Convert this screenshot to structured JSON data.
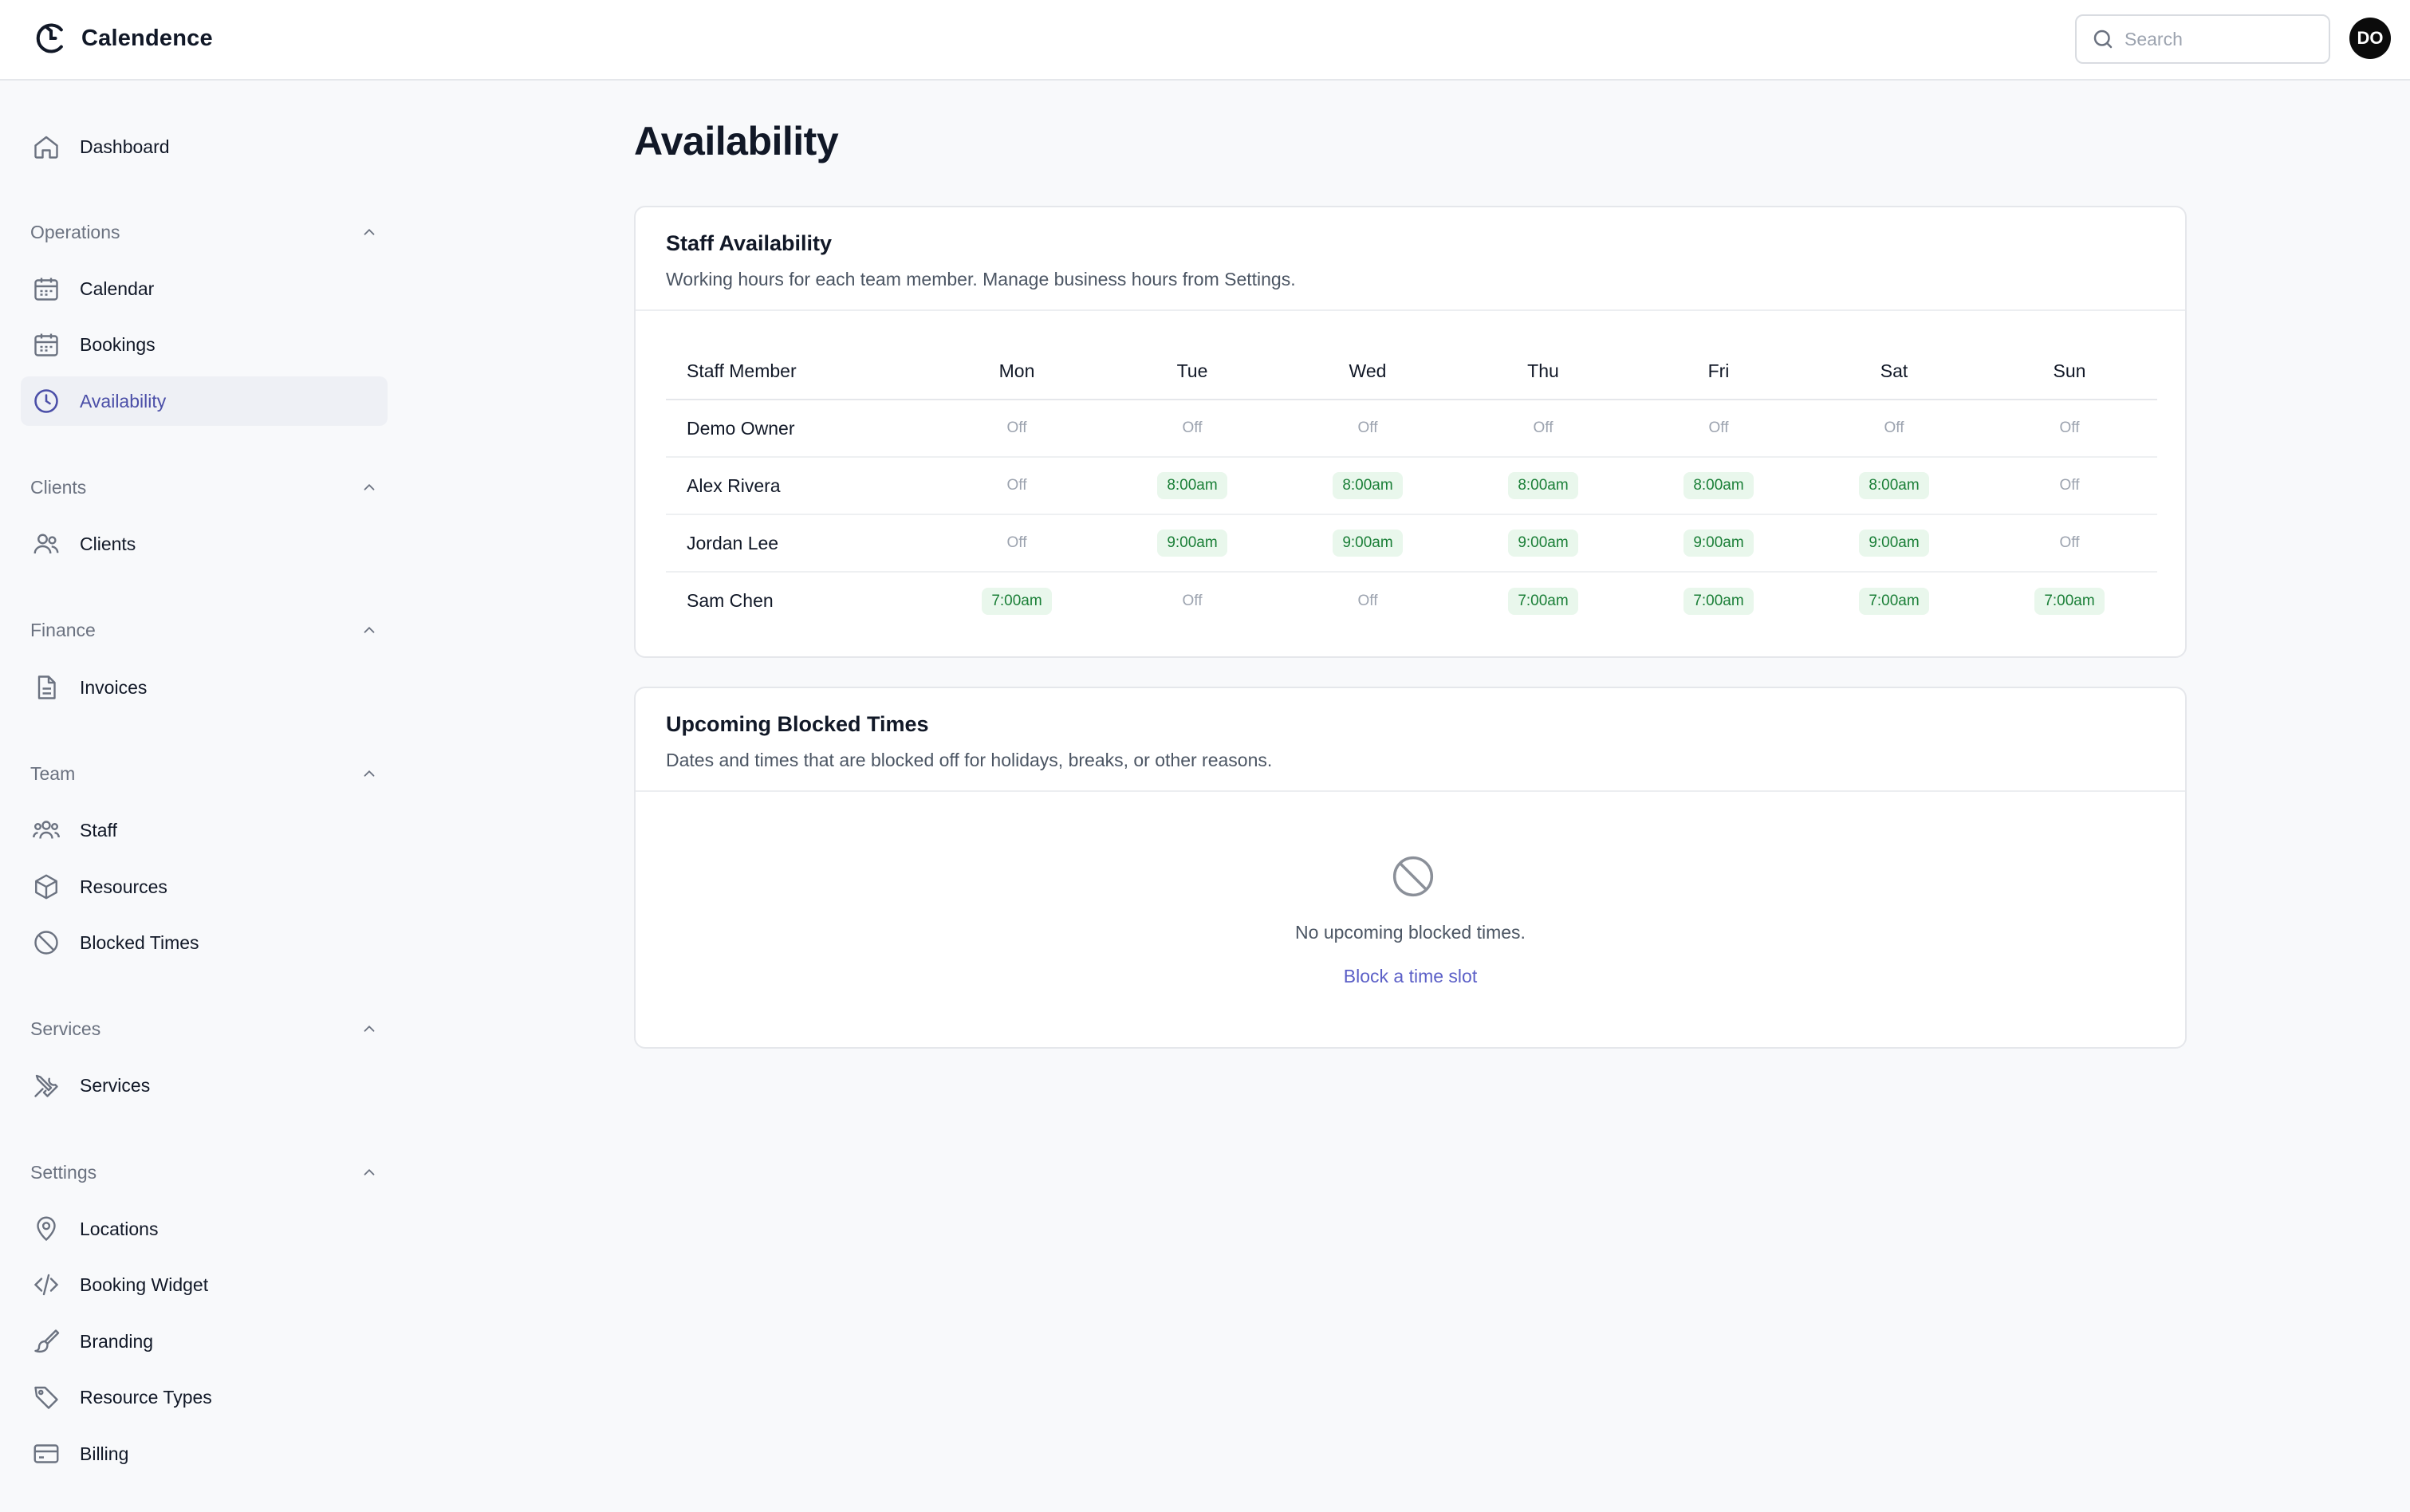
{
  "app": {
    "name": "Calendence"
  },
  "header": {
    "search_placeholder": "Search",
    "avatar_initials": "DO"
  },
  "sidebar": {
    "dashboard": "Dashboard",
    "sections": {
      "operations": {
        "label": "Operations",
        "items": [
          "Calendar",
          "Bookings",
          "Availability"
        ]
      },
      "clients": {
        "label": "Clients",
        "items": [
          "Clients"
        ]
      },
      "finance": {
        "label": "Finance",
        "items": [
          "Invoices"
        ]
      },
      "team": {
        "label": "Team",
        "items": [
          "Staff",
          "Resources",
          "Blocked Times"
        ]
      },
      "services": {
        "label": "Services",
        "items": [
          "Services"
        ]
      },
      "settings": {
        "label": "Settings",
        "items": [
          "Locations",
          "Booking Widget",
          "Branding",
          "Resource Types",
          "Billing"
        ]
      }
    },
    "active_item": "Availability"
  },
  "main": {
    "title": "Availability",
    "staff_card": {
      "title": "Staff Availability",
      "subtitle": "Working hours for each team member. Manage business hours from Settings.",
      "columns": [
        "Staff Member",
        "Mon",
        "Tue",
        "Wed",
        "Thu",
        "Fri",
        "Sat",
        "Sun"
      ],
      "rows": [
        {
          "name": "Demo Owner",
          "days": [
            "Off",
            "Off",
            "Off",
            "Off",
            "Off",
            "Off",
            "Off"
          ]
        },
        {
          "name": "Alex Rivera",
          "days": [
            "Off",
            "8:00am",
            "8:00am",
            "8:00am",
            "8:00am",
            "8:00am",
            "Off"
          ]
        },
        {
          "name": "Jordan Lee",
          "days": [
            "Off",
            "9:00am",
            "9:00am",
            "9:00am",
            "9:00am",
            "9:00am",
            "Off"
          ]
        },
        {
          "name": "Sam Chen",
          "days": [
            "7:00am",
            "Off",
            "Off",
            "7:00am",
            "7:00am",
            "7:00am",
            "7:00am"
          ]
        }
      ]
    },
    "blocked_card": {
      "title": "Upcoming Blocked Times",
      "subtitle": "Dates and times that are blocked off for holidays, breaks, or other reasons.",
      "empty_text": "No upcoming blocked times.",
      "action_label": "Block a time slot"
    }
  },
  "colors": {
    "accent": "#5b5fc7",
    "active_bg": "#eef0f5",
    "time_bg": "#e9f7ec",
    "time_text": "#1a7f37"
  }
}
